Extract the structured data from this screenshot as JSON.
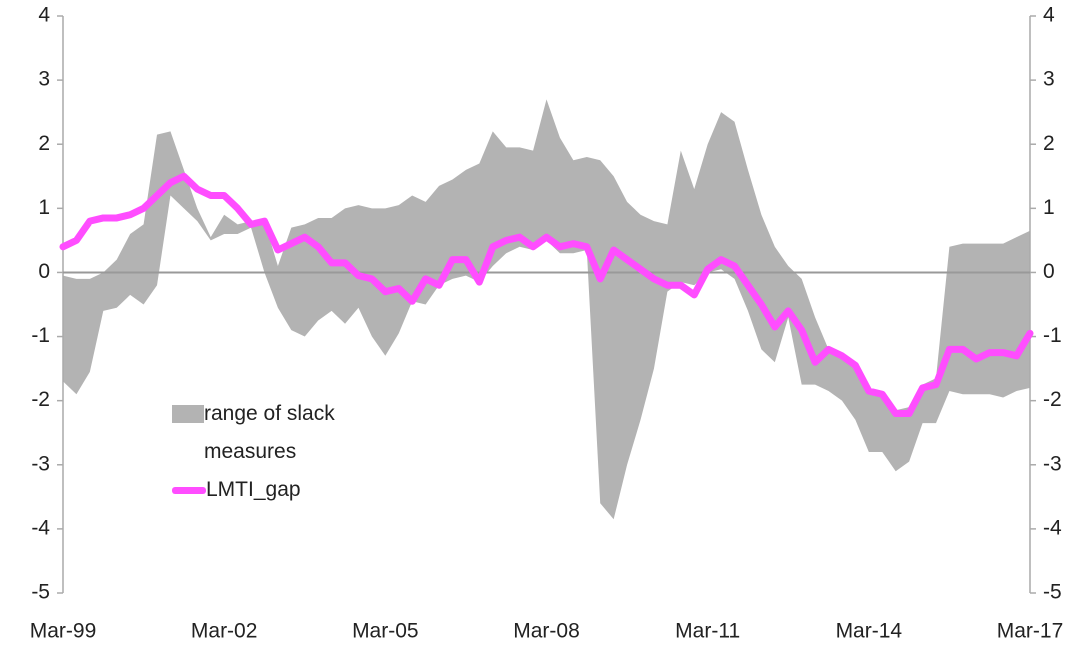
{
  "chart_data": {
    "type": "line",
    "categories": [
      "Mar-99",
      null,
      null,
      null,
      null,
      null,
      null,
      null,
      null,
      null,
      null,
      null,
      "Mar-02",
      null,
      null,
      null,
      null,
      null,
      null,
      null,
      null,
      null,
      null,
      null,
      "Mar-05",
      null,
      null,
      null,
      null,
      null,
      null,
      null,
      null,
      null,
      null,
      null,
      "Mar-08",
      null,
      null,
      null,
      null,
      null,
      null,
      null,
      null,
      null,
      null,
      null,
      "Mar-11",
      null,
      null,
      null,
      null,
      null,
      null,
      null,
      null,
      null,
      null,
      null,
      "Mar-14",
      null,
      null,
      null,
      null,
      null,
      null,
      null,
      null,
      null,
      null,
      null,
      "Mar-17"
    ],
    "series": [
      {
        "name": "range of slack measures",
        "type": "area",
        "color": "#b3b3b3",
        "high": [
          -0.05,
          -0.1,
          -0.1,
          0.0,
          0.2,
          0.6,
          0.75,
          2.15,
          2.2,
          1.6,
          1.0,
          0.55,
          0.9,
          0.75,
          0.8,
          0.8,
          0.1,
          0.7,
          0.75,
          0.85,
          0.85,
          1.0,
          1.05,
          1.0,
          1.0,
          1.05,
          1.2,
          1.1,
          1.35,
          1.45,
          1.6,
          1.7,
          2.2,
          1.95,
          1.95,
          1.9,
          2.7,
          2.1,
          1.75,
          1.8,
          1.75,
          1.5,
          1.1,
          0.9,
          0.8,
          0.75,
          1.9,
          1.3,
          2.0,
          2.5,
          2.35,
          1.6,
          0.9,
          0.4,
          0.1,
          -0.1,
          -0.7,
          -1.2,
          -1.25,
          -1.4,
          -1.8,
          -1.85,
          -2.15,
          -2.1,
          -1.75,
          -1.65,
          0.4,
          0.45,
          0.45,
          0.45,
          0.45,
          0.55,
          0.65
        ],
        "low": [
          -1.7,
          -1.9,
          -1.55,
          -0.6,
          -0.55,
          -0.35,
          -0.5,
          -0.2,
          1.2,
          1.0,
          0.8,
          0.5,
          0.6,
          0.6,
          0.7,
          0.0,
          -0.55,
          -0.9,
          -1.0,
          -0.75,
          -0.6,
          -0.8,
          -0.55,
          -1.0,
          -1.3,
          -0.95,
          -0.45,
          -0.5,
          -0.2,
          -0.1,
          -0.05,
          -0.15,
          0.1,
          0.3,
          0.4,
          0.35,
          0.5,
          0.3,
          0.3,
          0.35,
          -3.6,
          -3.85,
          -3.0,
          -2.3,
          -1.5,
          -0.3,
          -0.15,
          -0.2,
          0.0,
          0.05,
          -0.1,
          -0.6,
          -1.2,
          -1.4,
          -0.7,
          -1.75,
          -1.75,
          -1.85,
          -2.0,
          -2.3,
          -2.8,
          -2.8,
          -3.1,
          -2.95,
          -2.35,
          -2.35,
          -1.85,
          -1.9,
          -1.9,
          -1.9,
          -1.95,
          -1.85,
          -1.8
        ]
      },
      {
        "name": "LMTI_gap",
        "color": "#ff4dff",
        "values": [
          0.4,
          0.5,
          0.8,
          0.85,
          0.85,
          0.9,
          1.0,
          1.2,
          1.4,
          1.5,
          1.3,
          1.2,
          1.2,
          1.0,
          0.75,
          0.8,
          0.35,
          0.45,
          0.55,
          0.4,
          0.15,
          0.15,
          -0.05,
          -0.1,
          -0.3,
          -0.25,
          -0.45,
          -0.1,
          -0.2,
          0.2,
          0.2,
          -0.15,
          0.4,
          0.5,
          0.55,
          0.4,
          0.55,
          0.4,
          0.45,
          0.4,
          -0.1,
          0.35,
          0.2,
          0.05,
          -0.1,
          -0.2,
          -0.2,
          -0.35,
          0.05,
          0.2,
          0.1,
          -0.2,
          -0.5,
          -0.85,
          -0.6,
          -0.9,
          -1.4,
          -1.2,
          -1.3,
          -1.45,
          -1.85,
          -1.9,
          -2.2,
          -2.2,
          -1.8,
          -1.75,
          -1.2,
          -1.2,
          -1.35,
          -1.25,
          -1.25,
          -1.3,
          -0.95
        ]
      }
    ],
    "ylim": [
      -5,
      4
    ],
    "yticks": [
      -5,
      -4,
      -3,
      -2,
      -1,
      0,
      1,
      2,
      3,
      4
    ],
    "y2lim": [
      -5,
      4
    ],
    "y2ticks": [
      -5,
      -4,
      -3,
      -2,
      -1,
      0,
      1,
      2,
      3,
      4
    ]
  }
}
